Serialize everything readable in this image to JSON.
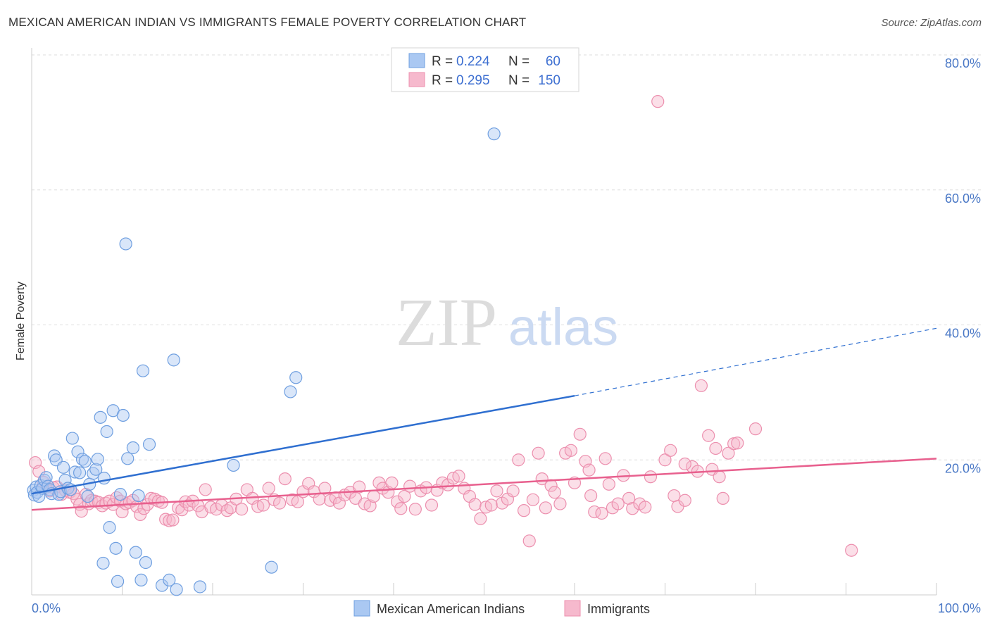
{
  "title": "MEXICAN AMERICAN INDIAN VS IMMIGRANTS FEMALE POVERTY CORRELATION CHART",
  "source": "Source: ZipAtlas.com",
  "watermark": {
    "zip": "ZIP",
    "atlas": "atlas"
  },
  "legend": {
    "r_label": "R =",
    "n_label": "N =",
    "rows": [
      {
        "r": "0.224",
        "n": "60"
      },
      {
        "r": "0.295",
        "n": "150"
      }
    ]
  },
  "colors": {
    "blue_fill": "#aac8f2",
    "blue_stroke": "#6f9fe0",
    "blue_line": "#2f6fd0",
    "pink_fill": "#f6b9cd",
    "pink_stroke": "#ec8fae",
    "pink_line": "#e8608e",
    "tick_color": "#4a78c6"
  },
  "chart_data": {
    "type": "scatter",
    "title": "MEXICAN AMERICAN INDIAN VS IMMIGRANTS FEMALE POVERTY CORRELATION CHART",
    "xlabel": "",
    "ylabel": "Female Poverty",
    "xlim": [
      0,
      100
    ],
    "ylim": [
      0,
      80
    ],
    "x_tick_labels": {
      "min": "0.0%",
      "max": "100.0%"
    },
    "y_ticks": [
      {
        "value": 20,
        "label": "20.0%"
      },
      {
        "value": 40,
        "label": "40.0%"
      },
      {
        "value": 60,
        "label": "60.0%"
      },
      {
        "value": 80,
        "label": "80.0%"
      }
    ],
    "grid": "horizontal dashed",
    "legend_position": "top-center",
    "series": [
      {
        "name": "Mexican American Indians",
        "r": 0.224,
        "n": 60,
        "trend": {
          "x0": 0,
          "y0": 15.0,
          "x1": 60,
          "y1": 29.5,
          "dashed_to_x": 100,
          "dashed_to_y": 39.5
        },
        "points": [
          [
            0.2,
            15.5
          ],
          [
            0.3,
            14.8
          ],
          [
            0.5,
            16.0
          ],
          [
            0.6,
            15.2
          ],
          [
            0.8,
            14.6
          ],
          [
            1.0,
            16.2
          ],
          [
            1.2,
            15.8
          ],
          [
            1.4,
            17.0
          ],
          [
            1.6,
            17.4
          ],
          [
            1.8,
            16.1
          ],
          [
            2.0,
            15.6
          ],
          [
            2.2,
            15.0
          ],
          [
            2.5,
            20.6
          ],
          [
            2.7,
            20.0
          ],
          [
            3.0,
            14.9
          ],
          [
            3.2,
            15.3
          ],
          [
            3.5,
            18.9
          ],
          [
            3.7,
            17.0
          ],
          [
            4.0,
            15.8
          ],
          [
            4.3,
            15.6
          ],
          [
            4.5,
            23.2
          ],
          [
            4.8,
            18.2
          ],
          [
            5.1,
            21.2
          ],
          [
            5.3,
            18.1
          ],
          [
            5.6,
            20.1
          ],
          [
            5.9,
            19.8
          ],
          [
            6.2,
            14.6
          ],
          [
            6.4,
            16.4
          ],
          [
            6.8,
            18.0
          ],
          [
            7.1,
            18.6
          ],
          [
            7.3,
            20.1
          ],
          [
            7.6,
            26.3
          ],
          [
            8.0,
            17.3
          ],
          [
            8.3,
            24.2
          ],
          [
            8.6,
            10.0
          ],
          [
            9.0,
            27.3
          ],
          [
            9.3,
            6.9
          ],
          [
            9.5,
            2.0
          ],
          [
            9.8,
            14.9
          ],
          [
            10.1,
            26.6
          ],
          [
            10.4,
            52.0
          ],
          [
            10.6,
            20.2
          ],
          [
            11.2,
            21.8
          ],
          [
            11.5,
            6.3
          ],
          [
            11.8,
            14.7
          ],
          [
            12.1,
            2.2
          ],
          [
            12.3,
            33.2
          ],
          [
            12.6,
            4.8
          ],
          [
            13.0,
            22.3
          ],
          [
            14.4,
            1.4
          ],
          [
            15.2,
            2.2
          ],
          [
            16.0,
            0.8
          ],
          [
            15.7,
            34.8
          ],
          [
            18.6,
            1.2
          ],
          [
            22.3,
            19.2
          ],
          [
            26.5,
            4.1
          ],
          [
            28.6,
            30.1
          ],
          [
            29.2,
            32.2
          ],
          [
            51.1,
            68.3
          ],
          [
            7.9,
            4.7
          ]
        ]
      },
      {
        "name": "Immigrants",
        "r": 0.295,
        "n": 150,
        "trend": {
          "x0": 0,
          "y0": 12.6,
          "x1": 100,
          "y1": 20.2
        },
        "points": [
          [
            0.4,
            19.6
          ],
          [
            0.8,
            18.3
          ],
          [
            1.3,
            16.7
          ],
          [
            1.6,
            15.9
          ],
          [
            2.0,
            15.4
          ],
          [
            2.4,
            15.9
          ],
          [
            2.8,
            16.0
          ],
          [
            3.3,
            14.9
          ],
          [
            3.7,
            15.5
          ],
          [
            4.2,
            15.2
          ],
          [
            4.6,
            15.0
          ],
          [
            5.0,
            14.2
          ],
          [
            5.3,
            13.4
          ],
          [
            5.5,
            12.4
          ],
          [
            6.0,
            14.9
          ],
          [
            6.3,
            13.5
          ],
          [
            6.6,
            14.0
          ],
          [
            7.0,
            13.9
          ],
          [
            7.4,
            13.7
          ],
          [
            7.8,
            13.2
          ],
          [
            8.2,
            13.6
          ],
          [
            8.6,
            13.9
          ],
          [
            9.0,
            13.4
          ],
          [
            9.4,
            14.4
          ],
          [
            9.8,
            13.9
          ],
          [
            10.0,
            12.3
          ],
          [
            10.4,
            13.5
          ],
          [
            10.8,
            13.7
          ],
          [
            11.2,
            14.0
          ],
          [
            11.6,
            13.1
          ],
          [
            12.0,
            11.9
          ],
          [
            12.4,
            12.8
          ],
          [
            12.8,
            13.4
          ],
          [
            13.2,
            14.3
          ],
          [
            13.6,
            14.2
          ],
          [
            14.0,
            13.9
          ],
          [
            14.4,
            13.7
          ],
          [
            14.8,
            11.2
          ],
          [
            15.2,
            11.0
          ],
          [
            15.6,
            11.1
          ],
          [
            16.2,
            12.9
          ],
          [
            16.6,
            12.6
          ],
          [
            17.0,
            13.8
          ],
          [
            17.4,
            13.3
          ],
          [
            17.8,
            13.9
          ],
          [
            18.4,
            13.2
          ],
          [
            18.8,
            12.3
          ],
          [
            19.2,
            15.6
          ],
          [
            19.8,
            13.0
          ],
          [
            20.4,
            12.7
          ],
          [
            21.0,
            13.3
          ],
          [
            21.6,
            12.5
          ],
          [
            22.0,
            12.9
          ],
          [
            22.6,
            14.2
          ],
          [
            23.2,
            12.7
          ],
          [
            23.8,
            15.6
          ],
          [
            24.4,
            14.3
          ],
          [
            25.0,
            13.1
          ],
          [
            25.6,
            13.3
          ],
          [
            26.2,
            15.8
          ],
          [
            26.8,
            14.1
          ],
          [
            27.4,
            13.6
          ],
          [
            28.0,
            17.2
          ],
          [
            28.8,
            14.1
          ],
          [
            29.4,
            13.8
          ],
          [
            30.0,
            15.3
          ],
          [
            30.6,
            16.5
          ],
          [
            31.2,
            15.3
          ],
          [
            31.8,
            14.2
          ],
          [
            32.4,
            15.8
          ],
          [
            33.0,
            14.0
          ],
          [
            33.6,
            14.4
          ],
          [
            34.0,
            13.6
          ],
          [
            34.6,
            14.8
          ],
          [
            35.2,
            15.2
          ],
          [
            35.8,
            14.3
          ],
          [
            36.2,
            16.0
          ],
          [
            36.8,
            13.5
          ],
          [
            37.4,
            13.2
          ],
          [
            37.8,
            14.6
          ],
          [
            38.4,
            16.6
          ],
          [
            38.8,
            15.8
          ],
          [
            39.4,
            15.2
          ],
          [
            39.8,
            16.6
          ],
          [
            40.4,
            13.8
          ],
          [
            40.8,
            12.8
          ],
          [
            41.2,
            14.6
          ],
          [
            41.8,
            16.1
          ],
          [
            42.4,
            12.7
          ],
          [
            43.0,
            15.4
          ],
          [
            43.6,
            15.9
          ],
          [
            44.2,
            13.3
          ],
          [
            44.8,
            15.5
          ],
          [
            45.4,
            16.6
          ],
          [
            46.0,
            16.3
          ],
          [
            46.6,
            17.3
          ],
          [
            47.2,
            17.6
          ],
          [
            47.8,
            15.8
          ],
          [
            48.4,
            14.6
          ],
          [
            49.0,
            13.4
          ],
          [
            49.6,
            11.3
          ],
          [
            50.2,
            13.0
          ],
          [
            50.8,
            13.3
          ],
          [
            51.4,
            15.4
          ],
          [
            52.0,
            13.6
          ],
          [
            52.6,
            14.2
          ],
          [
            53.2,
            15.4
          ],
          [
            53.8,
            20.0
          ],
          [
            54.4,
            12.5
          ],
          [
            55.0,
            8.0
          ],
          [
            55.4,
            14.1
          ],
          [
            56.0,
            21.0
          ],
          [
            56.4,
            17.2
          ],
          [
            56.8,
            12.9
          ],
          [
            57.4,
            16.2
          ],
          [
            57.8,
            15.2
          ],
          [
            58.4,
            13.5
          ],
          [
            59.0,
            21.0
          ],
          [
            59.6,
            21.4
          ],
          [
            60.0,
            16.6
          ],
          [
            60.6,
            23.8
          ],
          [
            61.2,
            19.8
          ],
          [
            61.6,
            18.5
          ],
          [
            61.8,
            14.7
          ],
          [
            62.2,
            12.3
          ],
          [
            63.0,
            12.1
          ],
          [
            63.4,
            20.2
          ],
          [
            63.8,
            16.4
          ],
          [
            64.2,
            12.9
          ],
          [
            64.8,
            13.5
          ],
          [
            65.4,
            17.7
          ],
          [
            66.0,
            14.3
          ],
          [
            66.4,
            12.8
          ],
          [
            67.2,
            13.5
          ],
          [
            67.8,
            13.0
          ],
          [
            68.4,
            17.5
          ],
          [
            69.2,
            73.1
          ],
          [
            70.0,
            20.0
          ],
          [
            70.6,
            21.4
          ],
          [
            71.0,
            14.7
          ],
          [
            71.4,
            13.1
          ],
          [
            72.2,
            14.0
          ],
          [
            73.0,
            19.0
          ],
          [
            73.6,
            18.3
          ],
          [
            74.8,
            23.6
          ],
          [
            75.2,
            18.6
          ],
          [
            75.6,
            21.7
          ],
          [
            76.0,
            17.5
          ],
          [
            76.4,
            14.3
          ],
          [
            77.0,
            21.0
          ],
          [
            77.6,
            22.4
          ],
          [
            78.0,
            22.5
          ],
          [
            80.0,
            24.6
          ],
          [
            90.6,
            6.6
          ],
          [
            74.0,
            31.0
          ],
          [
            72.2,
            19.4
          ]
        ]
      }
    ],
    "bottom_legend": [
      "Mexican American Indians",
      "Immigrants"
    ]
  }
}
